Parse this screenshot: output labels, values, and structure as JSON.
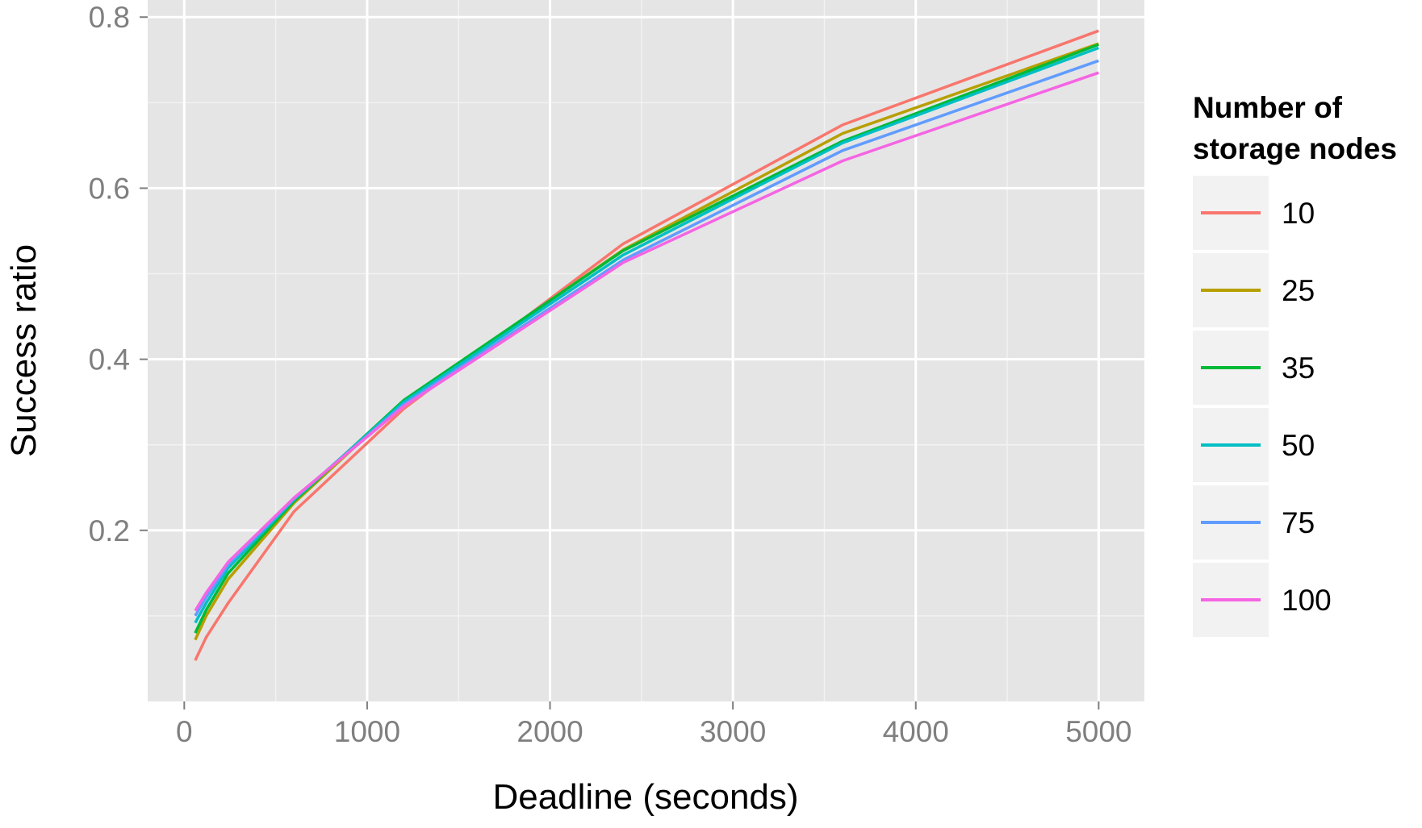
{
  "chart_data": {
    "type": "line",
    "xlabel": "Deadline (seconds)",
    "ylabel": "Success ratio",
    "xlim": [
      -200,
      5250
    ],
    "ylim": [
      0.0,
      0.82
    ],
    "xticks": [
      0,
      1000,
      2000,
      3000,
      4000,
      5000
    ],
    "xtick_labels": [
      "0",
      "1000",
      "2000",
      "3000",
      "4000",
      "5000"
    ],
    "yticks": [
      0.2,
      0.4,
      0.6,
      0.8
    ],
    "ytick_labels": [
      "0.2",
      "0.4",
      "0.6",
      "0.8"
    ],
    "grid": true,
    "panel_background": "#e5e5e5",
    "legend": {
      "title_line1": "Number of",
      "title_line2": "storage nodes",
      "position": "right"
    },
    "x": [
      60,
      120,
      240,
      600,
      1200,
      2400,
      3600,
      5000
    ],
    "series": [
      {
        "name": "10",
        "color": "#f8766d",
        "values": [
          0.048,
          0.075,
          0.115,
          0.222,
          0.342,
          0.535,
          0.674,
          0.784
        ]
      },
      {
        "name": "25",
        "color": "#b79f00",
        "values": [
          0.072,
          0.1,
          0.143,
          0.232,
          0.35,
          0.528,
          0.664,
          0.769
        ]
      },
      {
        "name": "35",
        "color": "#00ba38",
        "values": [
          0.08,
          0.107,
          0.15,
          0.234,
          0.352,
          0.527,
          0.655,
          0.768
        ]
      },
      {
        "name": "50",
        "color": "#00bfc4",
        "values": [
          0.092,
          0.115,
          0.156,
          0.236,
          0.35,
          0.522,
          0.653,
          0.764
        ]
      },
      {
        "name": "75",
        "color": "#619cff",
        "values": [
          0.1,
          0.122,
          0.16,
          0.237,
          0.347,
          0.516,
          0.644,
          0.749
        ]
      },
      {
        "name": "100",
        "color": "#f564e3",
        "values": [
          0.106,
          0.127,
          0.163,
          0.238,
          0.345,
          0.513,
          0.632,
          0.735
        ]
      }
    ]
  }
}
